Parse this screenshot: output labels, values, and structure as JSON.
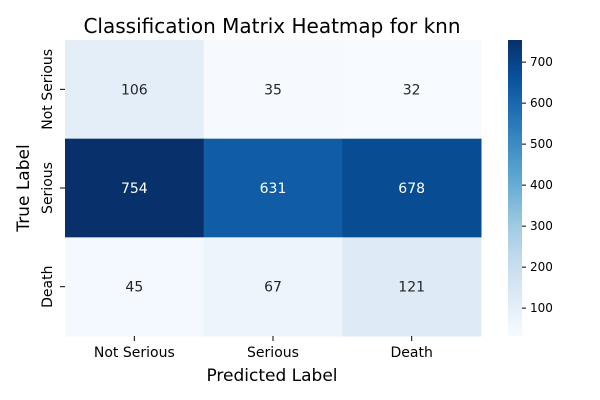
{
  "chart_data": {
    "type": "heatmap",
    "title": "Classification Matrix Heatmap for knn",
    "xlabel": "Predicted Label",
    "ylabel": "True Label",
    "x_categories": [
      "Not Serious",
      "Serious",
      "Death"
    ],
    "y_categories": [
      "Not Serious",
      "Serious",
      "Death"
    ],
    "values": [
      [
        106,
        35,
        32
      ],
      [
        754,
        631,
        678
      ],
      [
        45,
        67,
        121
      ]
    ],
    "colormap": "Blues",
    "color_range": [
      32,
      754
    ],
    "colorbar_ticks": [
      100,
      200,
      300,
      400,
      500,
      600,
      700
    ]
  }
}
